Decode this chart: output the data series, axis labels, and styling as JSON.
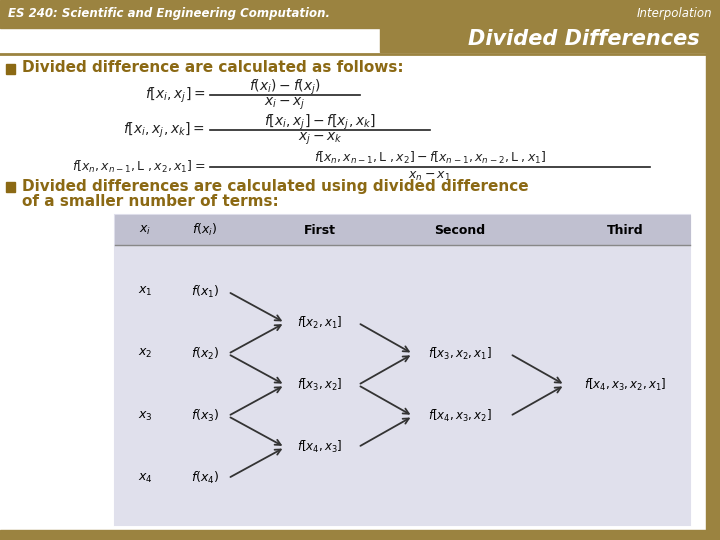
{
  "header_bg": "#9B8340",
  "header_text_left": "ES 240: Scientific and Engineering Computation.",
  "header_text_right": "Interpolation",
  "header_text_color": "#FFFFFF",
  "title_text": "Divided Differences",
  "title_color": "#8B7536",
  "slide_bg": "#FFFFFF",
  "bullet_color": "#8B6914",
  "bullet1": "Divided difference are calculated as follows:",
  "bullet2_line1": "Divided differences are calculated using divided difference",
  "bullet2_line2": "of a smaller number of terms:",
  "footer_bg": "#9B8340",
  "border_color": "#9B8340",
  "table_bg": "#E0E0EC",
  "table_header_bg": "#C0C0D0",
  "right_bar_color": "#9B8340"
}
